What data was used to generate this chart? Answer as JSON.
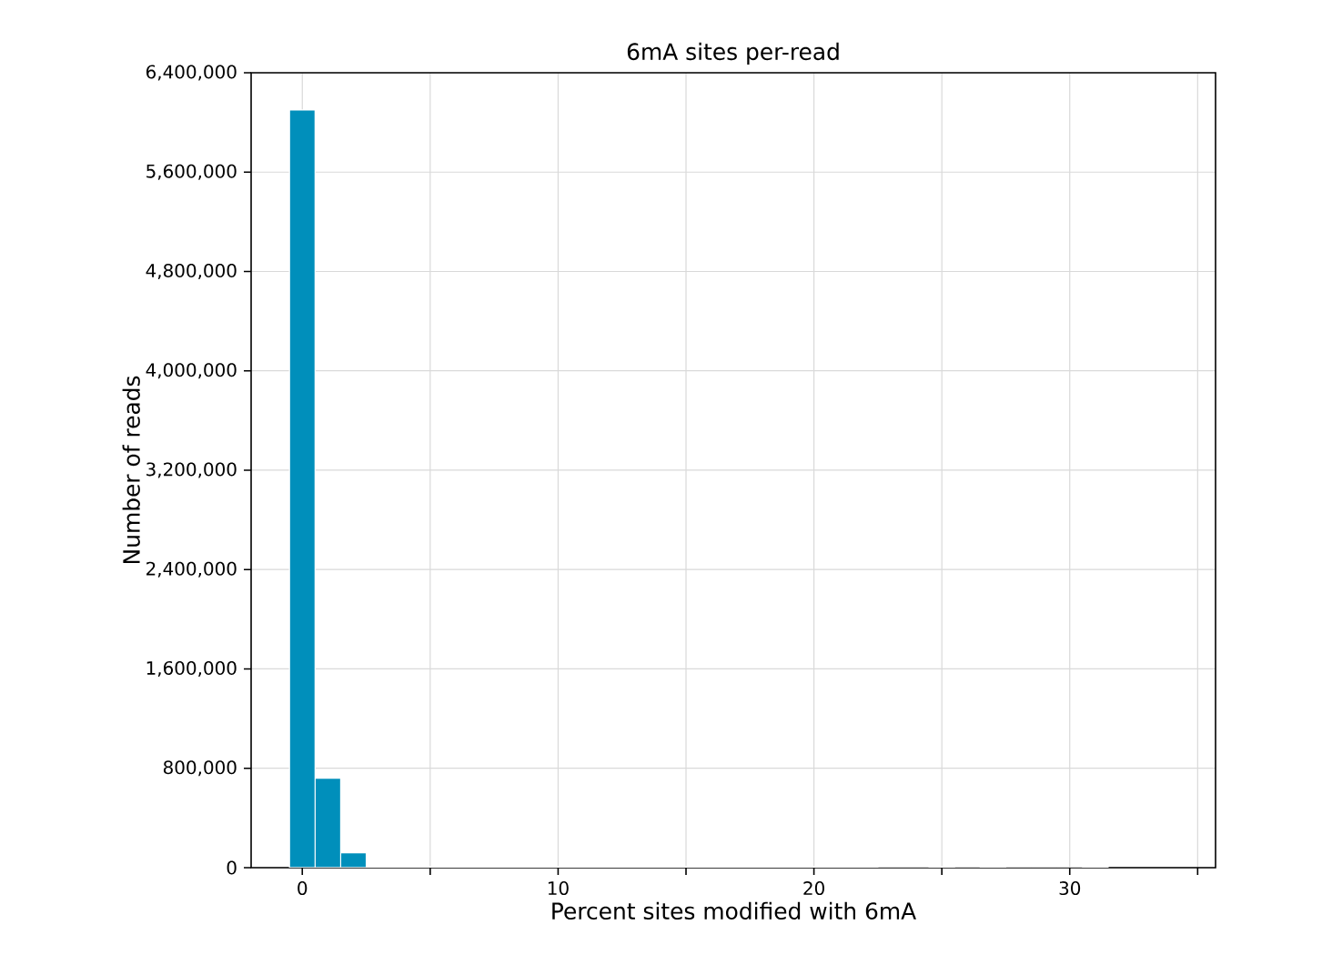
{
  "chart_data": {
    "type": "histogram",
    "title": "6mA sites per-read",
    "xlabel": "Percent sites modified with 6mA",
    "ylabel": "Number of reads",
    "bins": [
      -0.5,
      0.5,
      1.5,
      2.5,
      3.5,
      4.5,
      5.5,
      6.5,
      7.5,
      8.5,
      9.5,
      10.5,
      11.5,
      12.5,
      13.5,
      14.5,
      15.5,
      16.5,
      17.5,
      18.5,
      19.5,
      20.5,
      21.5,
      22.5,
      23.5,
      24.5,
      25.5,
      26.5,
      27.5,
      28.5,
      29.5,
      30.5,
      31.5
    ],
    "values": [
      6100000,
      720000,
      120000,
      10000,
      10000,
      10000,
      10000,
      10000,
      10000,
      10000,
      10000,
      10000,
      10000,
      10000,
      10000,
      10000,
      10000,
      10000,
      10000,
      10000,
      10000,
      10000,
      10000,
      0,
      0,
      10000,
      0,
      10000,
      0,
      0,
      0,
      10000
    ],
    "color": "#008fbb",
    "xlim": [
      -2,
      35.7
    ],
    "ylim": [
      0,
      6400000
    ],
    "xticks": [
      0,
      {
        "value": 5,
        "label": null
      },
      10,
      {
        "value": 15,
        "label": null
      },
      20,
      {
        "value": 25,
        "label": null
      },
      30,
      {
        "value": 35,
        "label": null
      }
    ],
    "yticks": [
      {
        "value": 0,
        "label": "0"
      },
      {
        "value": 800000,
        "label": "800,000"
      },
      {
        "value": 1600000,
        "label": "1,600,000"
      },
      {
        "value": 2400000,
        "label": "2,400,000"
      },
      {
        "value": 3200000,
        "label": "3,200,000"
      },
      {
        "value": 4000000,
        "label": "4,000,000"
      },
      {
        "value": 4800000,
        "label": "4,800,000"
      },
      {
        "value": 5600000,
        "label": "5,600,000"
      },
      {
        "value": 6400000,
        "label": "6,400,000"
      }
    ],
    "grid": true
  }
}
